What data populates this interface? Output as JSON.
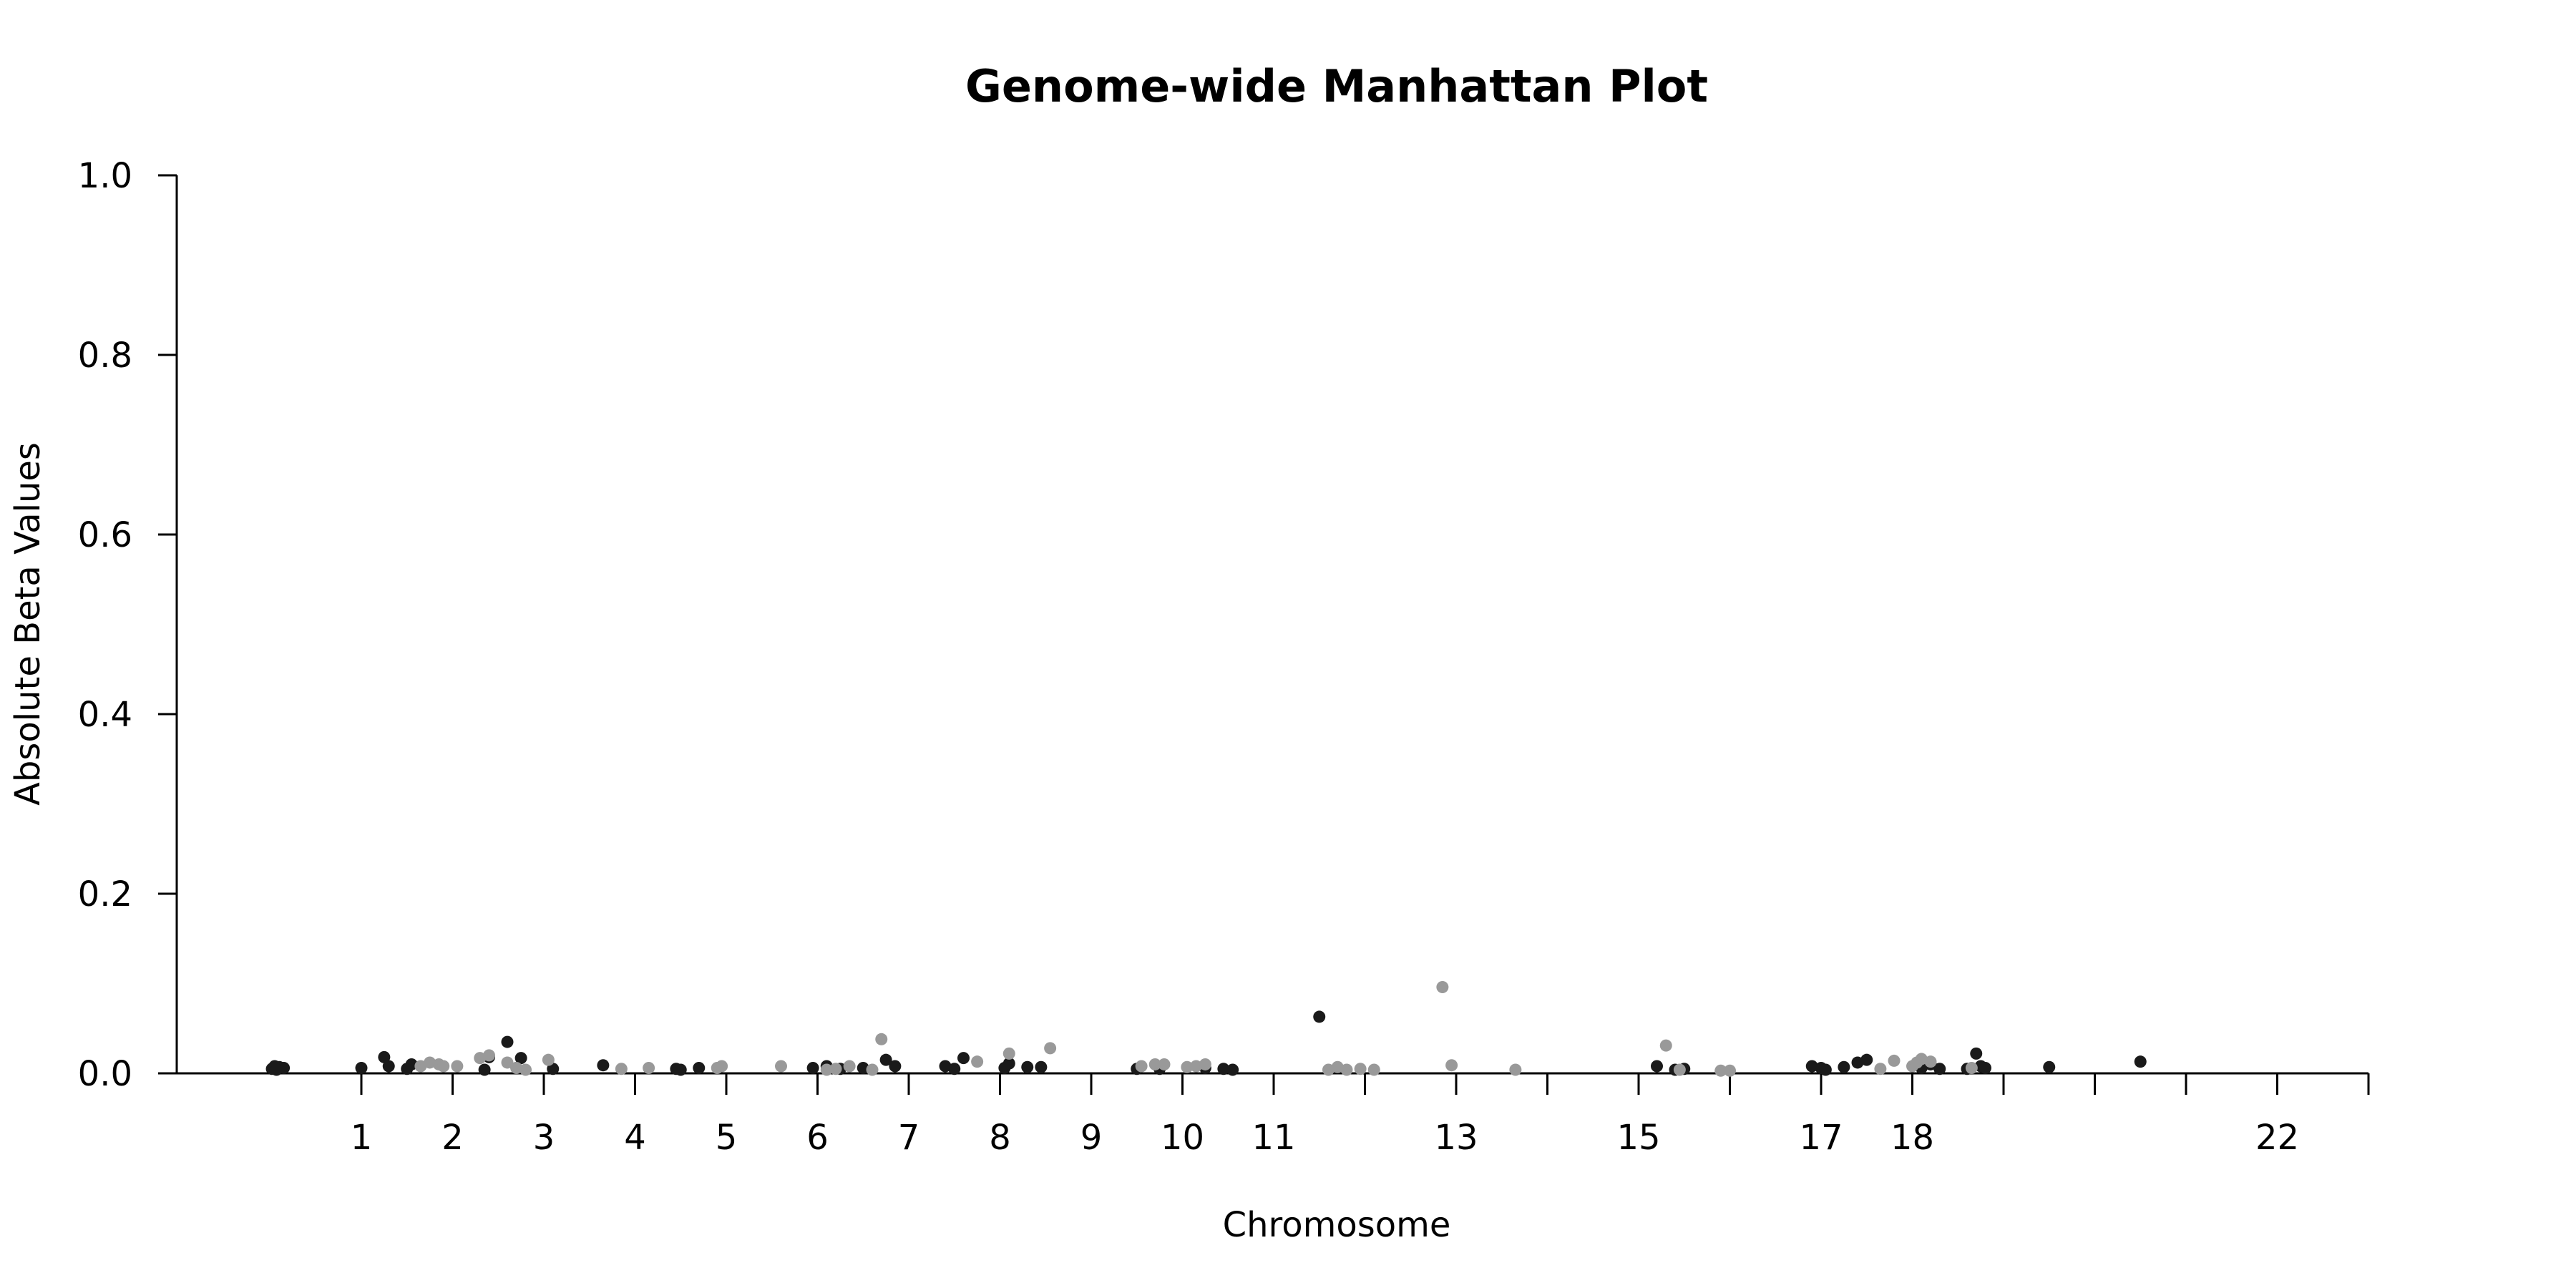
{
  "chart_data": {
    "type": "scatter",
    "title": "Genome-wide Manhattan Plot",
    "xlabel": "Chromosome",
    "ylabel": "Absolute Beta Values",
    "ylim": [
      0,
      1.0
    ],
    "xlim": [
      -0.75,
      23.75
    ],
    "y_ticks": [
      {
        "value": 0.0,
        "label": "0.0"
      },
      {
        "value": 0.2,
        "label": "0.2"
      },
      {
        "value": 0.4,
        "label": "0.4"
      },
      {
        "value": 0.6,
        "label": "0.6"
      },
      {
        "value": 0.8,
        "label": "0.8"
      },
      {
        "value": 1.0,
        "label": "1.0"
      }
    ],
    "x_ticks": [
      {
        "value": 1,
        "label": "1"
      },
      {
        "value": 2,
        "label": "2"
      },
      {
        "value": 3,
        "label": "3"
      },
      {
        "value": 4,
        "label": "4"
      },
      {
        "value": 5,
        "label": "5"
      },
      {
        "value": 6,
        "label": "6"
      },
      {
        "value": 7,
        "label": "7"
      },
      {
        "value": 8,
        "label": "8"
      },
      {
        "value": 9,
        "label": "9"
      },
      {
        "value": 10,
        "label": "10"
      },
      {
        "value": 11,
        "label": "11"
      },
      {
        "value": 12,
        "label": ""
      },
      {
        "value": 13,
        "label": "13"
      },
      {
        "value": 14,
        "label": ""
      },
      {
        "value": 15,
        "label": "15"
      },
      {
        "value": 16,
        "label": ""
      },
      {
        "value": 17,
        "label": "17"
      },
      {
        "value": 18,
        "label": "18"
      },
      {
        "value": 19,
        "label": ""
      },
      {
        "value": 20,
        "label": ""
      },
      {
        "value": 21,
        "label": ""
      },
      {
        "value": 22,
        "label": "22"
      },
      {
        "value": 23,
        "label": ""
      }
    ],
    "grid": false,
    "legend": "none",
    "colors": {
      "dark": "#1a1a1a",
      "light": "#999999",
      "axis": "#000000"
    },
    "series": [
      {
        "color": "dark",
        "points": [
          [
            0.02,
            0.005
          ],
          [
            0.05,
            0.008
          ],
          [
            0.1,
            0.007
          ],
          [
            0.15,
            0.006
          ],
          [
            0.07,
            0.004
          ],
          [
            1.0,
            0.006
          ],
          [
            1.25,
            0.018
          ],
          [
            1.3,
            0.008
          ],
          [
            1.5,
            0.005
          ],
          [
            1.55,
            0.01
          ],
          [
            2.35,
            0.004
          ],
          [
            2.4,
            0.018
          ],
          [
            2.6,
            0.035
          ],
          [
            2.7,
            0.006
          ],
          [
            2.75,
            0.017
          ],
          [
            3.1,
            0.005
          ],
          [
            3.65,
            0.009
          ],
          [
            4.45,
            0.005
          ],
          [
            4.5,
            0.004
          ],
          [
            4.7,
            0.006
          ],
          [
            5.95,
            0.006
          ],
          [
            6.1,
            0.008
          ],
          [
            6.25,
            0.005
          ],
          [
            6.5,
            0.006
          ],
          [
            6.75,
            0.015
          ],
          [
            6.85,
            0.008
          ],
          [
            7.4,
            0.008
          ],
          [
            7.5,
            0.005
          ],
          [
            7.6,
            0.017
          ],
          [
            8.05,
            0.006
          ],
          [
            8.1,
            0.011
          ],
          [
            8.3,
            0.007
          ],
          [
            8.45,
            0.007
          ],
          [
            9.5,
            0.005
          ],
          [
            9.75,
            0.005
          ],
          [
            10.25,
            0.006
          ],
          [
            10.45,
            0.005
          ],
          [
            10.55,
            0.004
          ],
          [
            11.5,
            0.063
          ],
          [
            15.2,
            0.008
          ],
          [
            15.4,
            0.004
          ],
          [
            15.5,
            0.005
          ],
          [
            16.9,
            0.008
          ],
          [
            17.0,
            0.006
          ],
          [
            17.05,
            0.004
          ],
          [
            17.25,
            0.007
          ],
          [
            17.4,
            0.012
          ],
          [
            17.5,
            0.015
          ],
          [
            18.1,
            0.006
          ],
          [
            18.2,
            0.01
          ],
          [
            18.3,
            0.005
          ],
          [
            18.6,
            0.005
          ],
          [
            18.7,
            0.022
          ],
          [
            18.75,
            0.008
          ],
          [
            18.8,
            0.006
          ],
          [
            19.5,
            0.007
          ],
          [
            20.5,
            0.013
          ]
        ]
      },
      {
        "color": "light",
        "points": [
          [
            1.65,
            0.008
          ],
          [
            1.75,
            0.012
          ],
          [
            1.85,
            0.01
          ],
          [
            1.9,
            0.008
          ],
          [
            2.05,
            0.008
          ],
          [
            2.3,
            0.017
          ],
          [
            2.4,
            0.02
          ],
          [
            2.6,
            0.012
          ],
          [
            2.7,
            0.006
          ],
          [
            2.8,
            0.004
          ],
          [
            3.05,
            0.015
          ],
          [
            3.85,
            0.005
          ],
          [
            4.15,
            0.006
          ],
          [
            4.9,
            0.006
          ],
          [
            4.95,
            0.008
          ],
          [
            5.6,
            0.008
          ],
          [
            6.1,
            0.004
          ],
          [
            6.2,
            0.005
          ],
          [
            6.35,
            0.008
          ],
          [
            6.6,
            0.004
          ],
          [
            6.7,
            0.038
          ],
          [
            7.75,
            0.013
          ],
          [
            8.1,
            0.022
          ],
          [
            8.55,
            0.028
          ],
          [
            9.55,
            0.008
          ],
          [
            9.7,
            0.01
          ],
          [
            9.8,
            0.01
          ],
          [
            10.05,
            0.007
          ],
          [
            10.15,
            0.008
          ],
          [
            10.25,
            0.01
          ],
          [
            11.6,
            0.004
          ],
          [
            11.7,
            0.007
          ],
          [
            11.8,
            0.004
          ],
          [
            11.95,
            0.005
          ],
          [
            12.1,
            0.004
          ],
          [
            12.85,
            0.096
          ],
          [
            12.95,
            0.009
          ],
          [
            13.65,
            0.004
          ],
          [
            15.3,
            0.031
          ],
          [
            15.45,
            0.004
          ],
          [
            15.9,
            0.003
          ],
          [
            16.0,
            0.003
          ],
          [
            17.65,
            0.005
          ],
          [
            17.8,
            0.014
          ],
          [
            18.0,
            0.008
          ],
          [
            18.05,
            0.012
          ],
          [
            18.1,
            0.016
          ],
          [
            18.2,
            0.013
          ],
          [
            18.65,
            0.006
          ]
        ]
      }
    ]
  }
}
